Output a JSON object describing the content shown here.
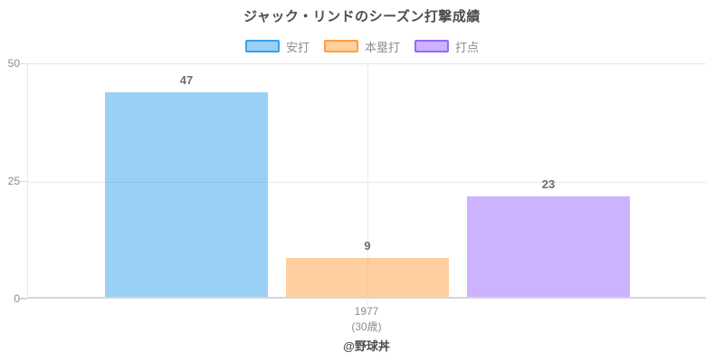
{
  "title": "ジャック・リンドのシーズン打撃成績",
  "footer": "@野球丼",
  "axis": {
    "yticks": [
      "50",
      "25",
      "0"
    ]
  },
  "xaxis": {
    "tick": "1977",
    "sub": "(30歳)"
  },
  "colors": {
    "title_text": "#4d4d4d",
    "tick_text": "#8c8c8c",
    "value_label_text": "#6e6e6e",
    "gridline": "#e8e8e8",
    "axis_line": "#d6d6d6"
  },
  "chart_data": {
    "type": "bar",
    "title": "ジャック・リンドのシーズン打撃成績",
    "categories": [
      "1977"
    ],
    "category_note": "(30歳)",
    "series": [
      {
        "name": "安打",
        "values": [
          47
        ],
        "fill": "rgba(54,162,235,0.5)",
        "border": "#36a2eb"
      },
      {
        "name": "本塁打",
        "values": [
          9
        ],
        "fill": "rgba(255,159,64,0.5)",
        "border": "#ff9f40"
      },
      {
        "name": "打点",
        "values": [
          23
        ],
        "fill": "rgba(153,102,255,0.5)",
        "border": "#9966ff"
      }
    ],
    "xlabel": "",
    "ylabel": "",
    "ylim": [
      0,
      50
    ],
    "yticks": [
      0,
      25,
      50
    ],
    "grid": true,
    "legend_position": "top",
    "value_labels": true,
    "annotation": "@野球丼"
  }
}
